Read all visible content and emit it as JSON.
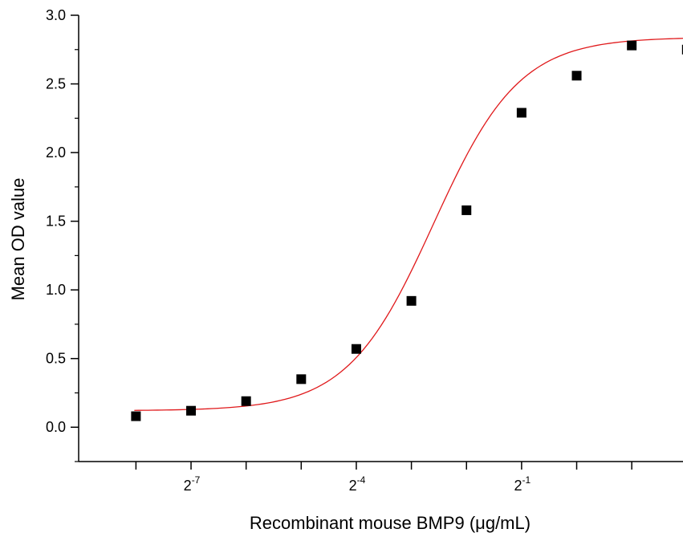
{
  "chart_data": {
    "type": "scatter",
    "title": "",
    "xlabel": "Recombinant mouse BMP9 (μg/mL)",
    "ylabel": "Mean OD value",
    "x_scale": "log2",
    "xlim": [
      -9.04,
      1.93
    ],
    "ylim": [
      -0.25,
      3.0
    ],
    "y_ticks": [
      0.0,
      0.5,
      1.0,
      1.5,
      2.0,
      2.5,
      3.0
    ],
    "y_tick_labels": [
      "0.0",
      "0.5",
      "1.0",
      "1.5",
      "2.0",
      "2.5",
      "3.0"
    ],
    "x_major_ticks": [
      -7,
      -4,
      -1
    ],
    "x_major_tick_labels": [
      {
        "base": "2",
        "exp": "-7"
      },
      {
        "base": "2",
        "exp": "-4"
      },
      {
        "base": "2",
        "exp": "-1"
      }
    ],
    "x_minor_ticks": [
      -8,
      -6,
      -5,
      -3,
      -2,
      0,
      1
    ],
    "grid": false,
    "marker_color": "#000000",
    "fit_color": "#e0191b",
    "series": [
      {
        "x_exp": [
          -8,
          -7,
          -6,
          -5,
          -4,
          -3,
          -2,
          -1,
          0,
          1,
          2
        ],
        "y": [
          0.08,
          0.12,
          0.19,
          0.35,
          0.57,
          0.92,
          1.58,
          2.29,
          2.56,
          2.78,
          2.75
        ]
      }
    ],
    "fit": {
      "type": "four-parameter-logistic",
      "bottom": 0.12,
      "top": 2.84,
      "ec50_exp": -2.6,
      "slope": 0.78
    }
  }
}
